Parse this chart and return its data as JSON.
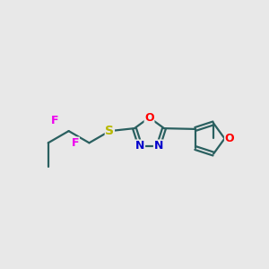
{
  "bg_color": "#e8e8e8",
  "bond_color": "#2a6060",
  "S_color": "#b8b800",
  "F_color": "#ee00ee",
  "N_color": "#0000cc",
  "O_color": "#ff0000",
  "figsize": [
    3.0,
    3.0
  ],
  "dpi": 100,
  "xlim": [
    0,
    10
  ],
  "ylim": [
    0,
    10
  ]
}
